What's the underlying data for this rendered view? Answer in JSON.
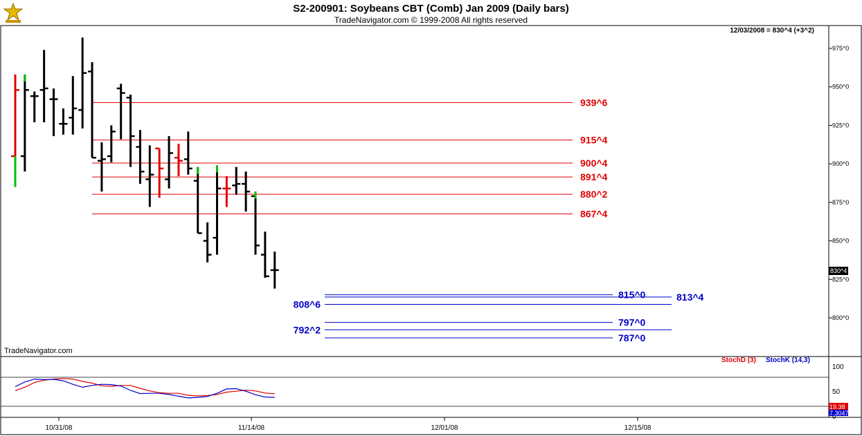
{
  "header": {
    "title": "S2-200901:  Soybeans CBT (Comb) Jan 2009  (Daily bars)",
    "copyright": "TradeNavigator.com © 1999-2008 All rights reserved",
    "last_bar_info": "12/03/2008 = 830^4 (+3^2)",
    "watermark": "TradeNavigator.com"
  },
  "colors": {
    "up": "#00c000",
    "down": "#e00000",
    "bar": "#000000",
    "resistance": "#e00000",
    "support": "#0000c8",
    "stoch_d": "#e00000",
    "stoch_k": "#0000c8"
  },
  "chart_data": [
    {
      "type": "ohlc",
      "title": "S2-200901:  Soybeans CBT (Comb) Jan 2009  (Daily bars)",
      "y_axis_ticks": [
        "975^0",
        "950^0",
        "925^0",
        "900^0",
        "875^0",
        "850^0",
        "825^0",
        "800^0"
      ],
      "y_axis_values": [
        975,
        950,
        925,
        900,
        875,
        850,
        825,
        800
      ],
      "ylim": [
        790,
        985
      ],
      "x_axis_ticks": [
        "10/31/08",
        "11/14/08",
        "12/01/08",
        "12/15/08"
      ],
      "last_price_label": "830^4",
      "bars": [
        {
          "high": 958,
          "low": 885,
          "open": 905,
          "close": 948,
          "color": "red"
        },
        {
          "high": 958,
          "low": 895,
          "open": 905,
          "close": 948,
          "color": "green"
        },
        {
          "high": 947,
          "low": 927,
          "open": 944,
          "close": 944,
          "color": "black"
        },
        {
          "high": 974,
          "low": 927,
          "open": 948,
          "close": 949,
          "color": "black"
        },
        {
          "high": 949,
          "low": 918,
          "open": 942,
          "close": 942,
          "color": "black"
        },
        {
          "high": 936,
          "low": 919,
          "open": 926,
          "close": 926,
          "color": "black"
        },
        {
          "high": 957,
          "low": 919,
          "open": 930,
          "close": 936,
          "color": "black"
        },
        {
          "high": 982,
          "low": 923,
          "open": 935,
          "close": 959,
          "color": "black"
        },
        {
          "high": 966,
          "low": 904,
          "open": 960,
          "close": 904,
          "color": "black"
        },
        {
          "high": 914,
          "low": 882,
          "open": 902,
          "close": 903,
          "color": "black"
        },
        {
          "high": 925,
          "low": 901,
          "open": 905,
          "close": 921,
          "color": "black"
        },
        {
          "high": 952,
          "low": 916,
          "open": 949,
          "close": 946,
          "color": "black"
        },
        {
          "high": 945,
          "low": 898,
          "open": 943,
          "close": 918,
          "color": "black"
        },
        {
          "high": 922,
          "low": 887,
          "open": 911,
          "close": 895,
          "color": "black"
        },
        {
          "high": 912,
          "low": 872,
          "open": 890,
          "close": 893,
          "color": "black"
        },
        {
          "high": 910,
          "low": 878,
          "open": 910,
          "close": 897,
          "color": "red"
        },
        {
          "high": 918,
          "low": 884,
          "open": 890,
          "close": 907,
          "color": "black"
        },
        {
          "high": 913,
          "low": 892,
          "open": 904,
          "close": 902,
          "color": "red"
        },
        {
          "high": 921,
          "low": 893,
          "open": 903,
          "close": 897,
          "color": "black"
        },
        {
          "high": 898,
          "low": 855,
          "open": 889,
          "close": 855,
          "color": "green"
        },
        {
          "high": 862,
          "low": 836,
          "open": 850,
          "close": 841,
          "color": "black"
        },
        {
          "high": 899,
          "low": 841,
          "open": 852,
          "close": 884,
          "color": "green"
        },
        {
          "high": 892,
          "low": 872,
          "open": 884,
          "close": 884,
          "color": "red"
        },
        {
          "high": 898,
          "low": 880,
          "open": 886,
          "close": 887,
          "color": "black"
        },
        {
          "high": 895,
          "low": 869,
          "open": 887,
          "close": 882,
          "color": "black"
        },
        {
          "high": 882,
          "low": 841,
          "open": 879,
          "close": 847,
          "color": "green"
        },
        {
          "high": 856,
          "low": 826,
          "open": 841,
          "close": 827,
          "color": "black"
        },
        {
          "high": 843,
          "low": 819,
          "open": 831,
          "close": 831,
          "color": "black"
        }
      ]
    },
    {
      "type": "line",
      "title": "",
      "y_axis_ticks": [
        "100",
        "50",
        "0"
      ],
      "ylim": [
        0,
        100
      ],
      "series": [
        {
          "name": "StochD (3)",
          "label_value": "19.38",
          "values": [
            30,
            42,
            58,
            66,
            70,
            72,
            70,
            62,
            56,
            47,
            45,
            48,
            48,
            38,
            29,
            23,
            21,
            21,
            14,
            12,
            13,
            17,
            25,
            28,
            32,
            29,
            22,
            19
          ]
        },
        {
          "name": "StochK (14,3)",
          "label_value": "7.3047",
          "values": [
            44,
            60,
            70,
            68,
            69,
            64,
            52,
            42,
            48,
            52,
            51,
            46,
            31,
            20,
            21,
            21,
            17,
            11,
            5,
            7,
            10,
            21,
            36,
            37,
            28,
            16,
            8,
            7
          ]
        }
      ]
    }
  ],
  "levels": {
    "resistance": [
      "939^6",
      "915^4",
      "900^4",
      "891^4",
      "880^2",
      "867^4"
    ],
    "resistance_values": [
      939.75,
      915.5,
      900.5,
      891.5,
      880.25,
      867.5
    ],
    "support_labels_right": [
      "815^0",
      "797^0",
      "787^0"
    ],
    "support_values_right": [
      815,
      797,
      787
    ],
    "support_label_far": "813^4",
    "support_value_far": 813.5,
    "support_labels_left": [
      "808^6",
      "792^2"
    ],
    "support_values_left": [
      808.75,
      792.25
    ]
  }
}
